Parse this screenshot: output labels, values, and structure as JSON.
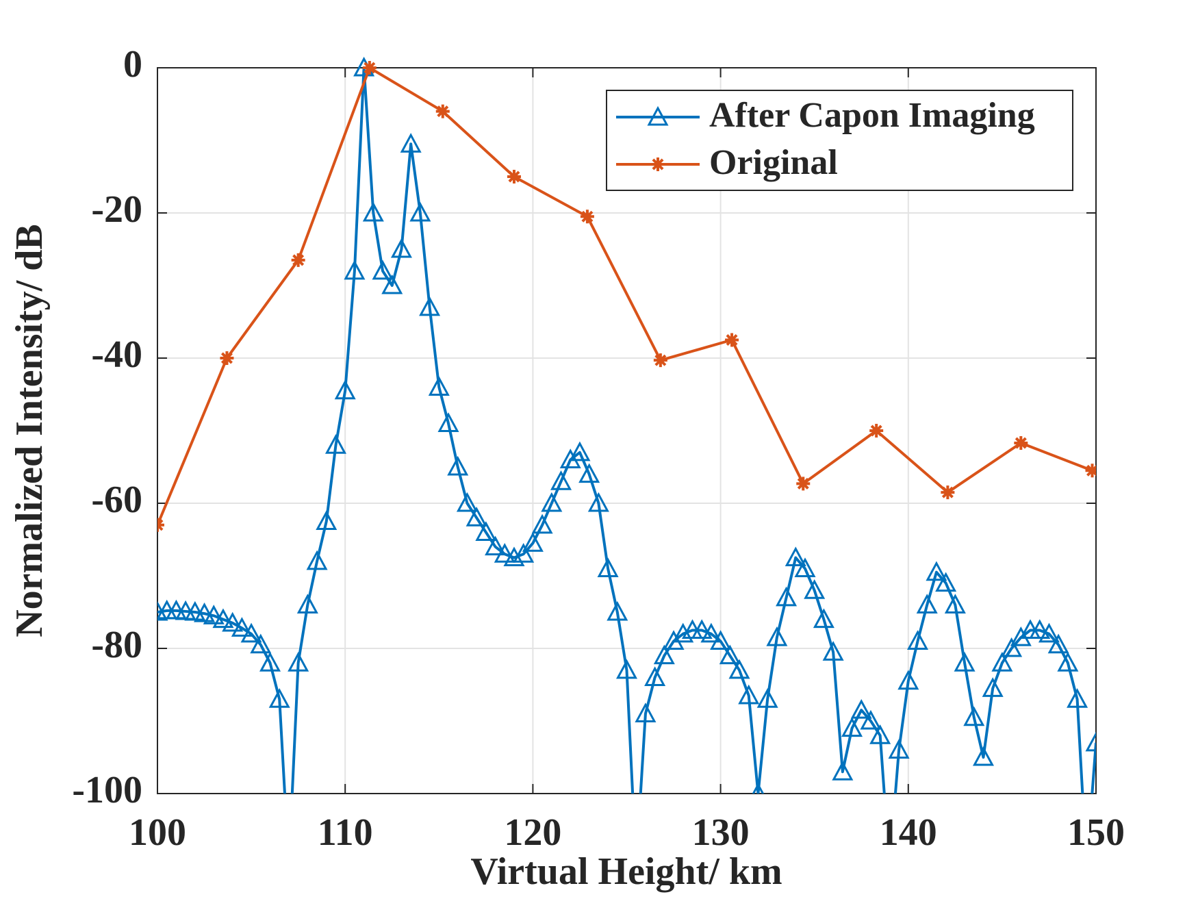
{
  "chart_data": {
    "type": "line",
    "xlabel": "Virtual Height/ km",
    "ylabel": "Normalized Intensity/ dB",
    "xlim": [
      100,
      150
    ],
    "ylim": [
      -100,
      0
    ],
    "xticks": [
      100,
      110,
      120,
      130,
      140,
      150
    ],
    "yticks": [
      -100,
      -80,
      -60,
      -40,
      -20,
      0
    ],
    "grid": true,
    "legend": "upper right",
    "series": [
      {
        "name": "After Capon Imaging",
        "color": "#0072bd",
        "marker": "triangle",
        "x": [
          100,
          100.5,
          101,
          101.5,
          102,
          102.5,
          103,
          103.5,
          104,
          104.5,
          105,
          105.5,
          106,
          106.5,
          107,
          107.5,
          108,
          108.5,
          109,
          109.5,
          110,
          110.5,
          111,
          111.5,
          112,
          112.5,
          113,
          113.5,
          114,
          114.5,
          115,
          115.5,
          116,
          116.5,
          117,
          117.5,
          118,
          118.5,
          119,
          119.5,
          120,
          120.5,
          121,
          121.5,
          122,
          122.5,
          123,
          123.5,
          124,
          124.5,
          125,
          125.5,
          126,
          126.5,
          127,
          127.5,
          128,
          128.5,
          129,
          129.5,
          130,
          130.5,
          131,
          131.5,
          132,
          132.5,
          133,
          133.5,
          134,
          134.5,
          135,
          135.5,
          136,
          136.5,
          137,
          137.5,
          138,
          138.5,
          139,
          139.5,
          140,
          140.5,
          141,
          141.5,
          142,
          142.5,
          143,
          143.5,
          144,
          144.5,
          145,
          145.5,
          146,
          146.5,
          147,
          147.5,
          148,
          148.5,
          149,
          149.5,
          150
        ],
        "values": [
          -75,
          -74.8,
          -74.8,
          -74.9,
          -75,
          -75.2,
          -75.5,
          -76,
          -76.5,
          -77.2,
          -78,
          -79.5,
          -82,
          -87,
          -110,
          -82,
          -74,
          -68,
          -62.5,
          -52,
          -44.5,
          -28,
          0,
          -20,
          -28,
          -30,
          -25,
          -10.5,
          -20,
          -33,
          -44,
          -49,
          -55,
          -60,
          -62,
          -64,
          -66,
          -67,
          -67.5,
          -67,
          -65.5,
          -63,
          -60,
          -57,
          -54,
          -53,
          -56,
          -60,
          -69,
          -75,
          -83,
          -110,
          -89,
          -84,
          -81,
          -79,
          -78,
          -77.5,
          -77.5,
          -78,
          -79,
          -81,
          -83,
          -86.5,
          -100,
          -87,
          -78.5,
          -73,
          -67.5,
          -69,
          -72,
          -76,
          -80.5,
          -97,
          -91,
          -88.5,
          -90,
          -92,
          -110,
          -94,
          -84.5,
          -79,
          -74,
          -69.5,
          -71,
          -74,
          -82,
          -89.5,
          -95,
          -85.5,
          -82,
          -80,
          -78.5,
          -77.5,
          -77.5,
          -78,
          -79.5,
          -82,
          -87,
          -110,
          -93
        ]
      },
      {
        "name": "Original",
        "color": "#d95319",
        "marker": "asterisk",
        "x": [
          100,
          103.7,
          107.5,
          111.3,
          115.2,
          119,
          122.9,
          126.8,
          130.6,
          134.4,
          138.3,
          142.1,
          146,
          149.8
        ],
        "values": [
          -63,
          -40,
          -26.5,
          0,
          -6,
          -15,
          -20.5,
          -40.3,
          -37.5,
          -57.3,
          -50,
          -58.5,
          -51.7,
          -55.5
        ]
      }
    ]
  }
}
